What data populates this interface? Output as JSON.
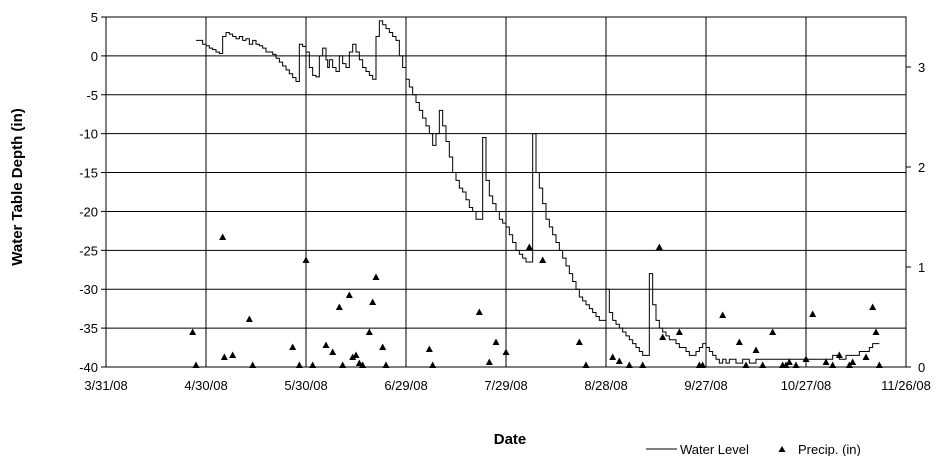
{
  "chart_data": {
    "type": "line",
    "xlabel": "Date",
    "ylabel": "Water Table Depth (in)",
    "x_ticks": [
      "3/31/08",
      "4/30/08",
      "5/30/08",
      "6/29/08",
      "7/29/08",
      "8/28/08",
      "9/27/08",
      "10/27/08",
      "11/26/08"
    ],
    "x_range_days": [
      0,
      240
    ],
    "ylim": [
      -40,
      5
    ],
    "y_ticks": [
      "5",
      "0",
      "-5",
      "-10",
      "-15",
      "-20",
      "-25",
      "-30",
      "-35",
      "-40"
    ],
    "y2lim": [
      0,
      3.5
    ],
    "y2_ticks": [
      "0",
      "1",
      "2",
      "3"
    ],
    "grid": true,
    "legend": "bottom-right",
    "series": [
      {
        "name": "Water Level",
        "axis": "left",
        "style": "step-line",
        "color": "#000000",
        "points": [
          [
            27,
            2
          ],
          [
            28,
            2
          ],
          [
            29,
            1.5
          ],
          [
            30,
            1.3
          ],
          [
            31,
            1
          ],
          [
            32,
            0.8
          ],
          [
            33,
            0.5
          ],
          [
            34,
            0.3
          ],
          [
            34.5,
            0.3
          ],
          [
            35,
            2.5
          ],
          [
            36,
            3
          ],
          [
            37,
            2.8
          ],
          [
            38,
            2.5
          ],
          [
            39,
            2.2
          ],
          [
            40,
            2.5
          ],
          [
            41,
            2
          ],
          [
            42,
            2.2
          ],
          [
            43,
            1.5
          ],
          [
            44,
            2
          ],
          [
            45,
            1.5
          ],
          [
            46,
            1.3
          ],
          [
            47,
            1
          ],
          [
            48,
            0.5
          ],
          [
            49,
            0.5
          ],
          [
            50,
            0.2
          ],
          [
            51,
            -0.3
          ],
          [
            52,
            -0.8
          ],
          [
            53,
            -1.3
          ],
          [
            54,
            -1.8
          ],
          [
            55,
            -2.3
          ],
          [
            56,
            -2.8
          ],
          [
            57,
            -3.3
          ],
          [
            58,
            1.5
          ],
          [
            59,
            1.2
          ],
          [
            60,
            0.5
          ],
          [
            61,
            -1.5
          ],
          [
            62,
            -2.5
          ],
          [
            63,
            -2.7
          ],
          [
            64,
            0
          ],
          [
            65,
            1
          ],
          [
            66,
            -0.5
          ],
          [
            66.5,
            -1.5
          ],
          [
            67,
            -0.5
          ],
          [
            68,
            -1.5
          ],
          [
            69,
            -2
          ],
          [
            70,
            0
          ],
          [
            71,
            -1
          ],
          [
            72,
            -1.5
          ],
          [
            73,
            0.5
          ],
          [
            74,
            1.5
          ],
          [
            75,
            0.5
          ],
          [
            76,
            -0.5
          ],
          [
            77,
            -1.5
          ],
          [
            78,
            -2
          ],
          [
            79,
            -2.5
          ],
          [
            80,
            -3
          ],
          [
            81,
            2.5
          ],
          [
            82,
            4.5
          ],
          [
            83,
            4
          ],
          [
            84,
            3.5
          ],
          [
            85,
            3
          ],
          [
            86,
            2.5
          ],
          [
            87,
            2
          ],
          [
            88,
            0
          ],
          [
            89,
            -1.5
          ],
          [
            90,
            -3
          ],
          [
            91,
            -4
          ],
          [
            92,
            -5
          ],
          [
            93,
            -6
          ],
          [
            94,
            -7
          ],
          [
            95,
            -8
          ],
          [
            96,
            -9
          ],
          [
            97,
            -10
          ],
          [
            98,
            -11.5
          ],
          [
            99,
            -10
          ],
          [
            100,
            -7
          ],
          [
            101,
            -9
          ],
          [
            102,
            -11
          ],
          [
            103,
            -13
          ],
          [
            104,
            -15
          ],
          [
            105,
            -16
          ],
          [
            106,
            -17
          ],
          [
            107,
            -17.5
          ],
          [
            108,
            -18.5
          ],
          [
            109,
            -19.5
          ],
          [
            110,
            -20
          ],
          [
            111,
            -21
          ],
          [
            112,
            -21
          ],
          [
            113,
            -10.5
          ],
          [
            114,
            -16
          ],
          [
            115,
            -18
          ],
          [
            116,
            -19
          ],
          [
            117,
            -20
          ],
          [
            118,
            -21
          ],
          [
            119,
            -21.5
          ],
          [
            120,
            -22
          ],
          [
            121,
            -23
          ],
          [
            122,
            -24
          ],
          [
            123,
            -25
          ],
          [
            124,
            -25.5
          ],
          [
            125,
            -26
          ],
          [
            126,
            -26.5
          ],
          [
            127,
            -26.5
          ],
          [
            128,
            -10
          ],
          [
            129,
            -15
          ],
          [
            130,
            -17
          ],
          [
            131,
            -19
          ],
          [
            132,
            -21
          ],
          [
            133,
            -22
          ],
          [
            134,
            -23
          ],
          [
            135,
            -24
          ],
          [
            136,
            -25
          ],
          [
            137,
            -26
          ],
          [
            138,
            -27
          ],
          [
            139,
            -28
          ],
          [
            140,
            -29
          ],
          [
            141,
            -30
          ],
          [
            142,
            -31
          ],
          [
            143,
            -31.5
          ],
          [
            144,
            -32
          ],
          [
            145,
            -32.5
          ],
          [
            146,
            -33
          ],
          [
            147,
            -33.5
          ],
          [
            148,
            -34
          ],
          [
            149,
            -34
          ],
          [
            150,
            -30
          ],
          [
            151,
            -33
          ],
          [
            152,
            -34
          ],
          [
            153,
            -34.5
          ],
          [
            154,
            -35
          ],
          [
            155,
            -35.5
          ],
          [
            156,
            -36
          ],
          [
            157,
            -36.5
          ],
          [
            158,
            -37
          ],
          [
            159,
            -37.5
          ],
          [
            160,
            -38
          ],
          [
            161,
            -38.5
          ],
          [
            162,
            -38.5
          ],
          [
            163,
            -28
          ],
          [
            164,
            -32
          ],
          [
            165,
            -34
          ],
          [
            166,
            -35
          ],
          [
            167,
            -35.5
          ],
          [
            168,
            -36
          ],
          [
            169,
            -36.5
          ],
          [
            170,
            -36.5
          ],
          [
            171,
            -37
          ],
          [
            172,
            -37.5
          ],
          [
            173,
            -37.5
          ],
          [
            174,
            -38
          ],
          [
            175,
            -38.5
          ],
          [
            176,
            -38.5
          ],
          [
            177,
            -38
          ],
          [
            178,
            -37.5
          ],
          [
            179,
            -37
          ],
          [
            180,
            -37.5
          ],
          [
            181,
            -38
          ],
          [
            182,
            -38.5
          ],
          [
            183,
            -39
          ],
          [
            184,
            -39.5
          ],
          [
            185,
            -39
          ],
          [
            186,
            -39.5
          ],
          [
            187,
            -39
          ],
          [
            189,
            -39.5
          ],
          [
            191,
            -39
          ],
          [
            193,
            -39.5
          ],
          [
            195,
            -39
          ],
          [
            200,
            -39
          ],
          [
            205,
            -39
          ],
          [
            210,
            -39
          ],
          [
            215,
            -39
          ],
          [
            218,
            -38.5
          ],
          [
            220,
            -39
          ],
          [
            222,
            -38.5
          ],
          [
            224,
            -38.5
          ],
          [
            226,
            -38
          ],
          [
            228,
            -38
          ],
          [
            229,
            -37.5
          ],
          [
            230,
            -37
          ],
          [
            231,
            -37
          ],
          [
            232,
            -37
          ]
        ]
      },
      {
        "name": "Precip. (in)",
        "axis": "right",
        "style": "triangle-markers",
        "color": "#000000",
        "points": [
          [
            26,
            0.35
          ],
          [
            27,
            0.02
          ],
          [
            35,
            1.3
          ],
          [
            35.5,
            0.1
          ],
          [
            38,
            0.12
          ],
          [
            43,
            0.48
          ],
          [
            44,
            0.02
          ],
          [
            56,
            0.2
          ],
          [
            58,
            0.02
          ],
          [
            60,
            1.07
          ],
          [
            62,
            0.02
          ],
          [
            66,
            0.22
          ],
          [
            68,
            0.15
          ],
          [
            70,
            0.6
          ],
          [
            71,
            0.02
          ],
          [
            73,
            0.72
          ],
          [
            74,
            0.1
          ],
          [
            75,
            0.12
          ],
          [
            76,
            0.04
          ],
          [
            77,
            0.02
          ],
          [
            79,
            0.35
          ],
          [
            80,
            0.65
          ],
          [
            81,
            0.9
          ],
          [
            83,
            0.2
          ],
          [
            84,
            0.02
          ],
          [
            97,
            0.18
          ],
          [
            98,
            0.02
          ],
          [
            112,
            0.55
          ],
          [
            115,
            0.05
          ],
          [
            117,
            0.25
          ],
          [
            120,
            0.15
          ],
          [
            127,
            1.2
          ],
          [
            131,
            1.07
          ],
          [
            142,
            0.25
          ],
          [
            144,
            0.02
          ],
          [
            152,
            0.1
          ],
          [
            154,
            0.06
          ],
          [
            157,
            0.02
          ],
          [
            161,
            0.02
          ],
          [
            166,
            1.2
          ],
          [
            167,
            0.3
          ],
          [
            172,
            0.35
          ],
          [
            178,
            0.02
          ],
          [
            179,
            0.02
          ],
          [
            185,
            0.52
          ],
          [
            190,
            0.25
          ],
          [
            192,
            0.02
          ],
          [
            195,
            0.17
          ],
          [
            197,
            0.02
          ],
          [
            210,
            0.08
          ],
          [
            212,
            0.53
          ],
          [
            223,
            0.02
          ],
          [
            224,
            0.05
          ],
          [
            228,
            0.1
          ],
          [
            230,
            0.6
          ],
          [
            231,
            0.35
          ],
          [
            232,
            0.02
          ],
          [
            218,
            0.02
          ],
          [
            216,
            0.05
          ],
          [
            220,
            0.12
          ],
          [
            205,
            0.05
          ],
          [
            207,
            0.02
          ],
          [
            200,
            0.35
          ],
          [
            204,
            0.02
          ],
          [
            203,
            0.02
          ]
        ]
      }
    ]
  }
}
